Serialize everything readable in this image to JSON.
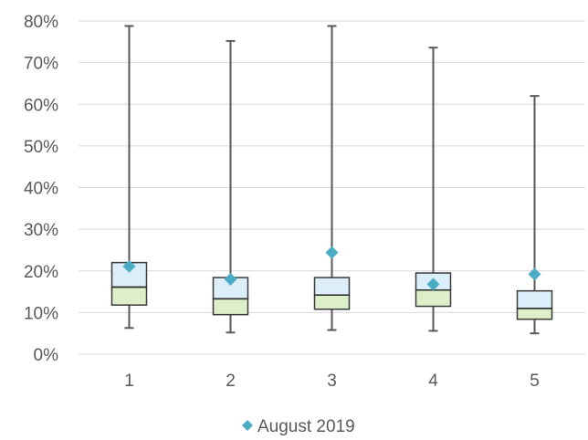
{
  "chart_data": {
    "type": "box",
    "title": "",
    "xlabel": "",
    "ylabel": "",
    "categories": [
      "1",
      "2",
      "3",
      "4",
      "5"
    ],
    "ylim": [
      0,
      0.8
    ],
    "y_ticks": [
      0,
      0.1,
      0.2,
      0.3,
      0.4,
      0.5,
      0.6,
      0.7,
      0.8
    ],
    "y_tick_labels": [
      "0%",
      "10%",
      "20%",
      "30%",
      "40%",
      "50%",
      "60%",
      "70%",
      "80%"
    ],
    "grid": true,
    "boxes": [
      {
        "category": "1",
        "min": 0.063,
        "q1": 0.118,
        "median": 0.161,
        "q3": 0.22,
        "max": 0.788
      },
      {
        "category": "2",
        "min": 0.052,
        "q1": 0.095,
        "median": 0.133,
        "q3": 0.184,
        "max": 0.752
      },
      {
        "category": "3",
        "min": 0.058,
        "q1": 0.108,
        "median": 0.142,
        "q3": 0.184,
        "max": 0.788
      },
      {
        "category": "4",
        "min": 0.056,
        "q1": 0.115,
        "median": 0.154,
        "q3": 0.195,
        "max": 0.736
      },
      {
        "category": "5",
        "min": 0.05,
        "q1": 0.084,
        "median": 0.11,
        "q3": 0.152,
        "max": 0.62
      }
    ],
    "series": [
      {
        "name": "August 2019",
        "marker": "diamond",
        "color": "#4bacc6",
        "values": [
          0.211,
          0.18,
          0.244,
          0.168,
          0.192
        ]
      }
    ],
    "legend": {
      "position": "bottom"
    },
    "colors": {
      "upper_box": "#dbeefa",
      "lower_box": "#dcefc9",
      "grid": "#d9d9d9",
      "whisker": "#595959"
    }
  }
}
